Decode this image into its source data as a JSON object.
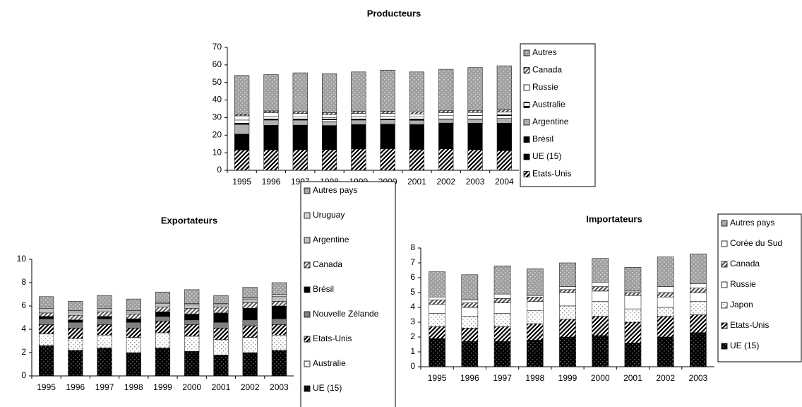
{
  "chart_data": [
    {
      "type": "stacked_bar",
      "title": "Producteurs",
      "categories": [
        "1995",
        "1996",
        "1997",
        "1998",
        "1999",
        "2000",
        "2001",
        "2002",
        "2003",
        "2004"
      ],
      "ylim": [
        0,
        70
      ],
      "yticks": [
        0,
        10,
        20,
        30,
        40,
        50,
        60,
        70
      ],
      "series": [
        {
          "name": "Etats-Unis",
          "color": "#000000",
          "pattern": "diag",
          "values": [
            11.6,
            11.7,
            11.7,
            11.8,
            12.1,
            12.3,
            11.9,
            12.2,
            11.8,
            11.2
          ]
        },
        {
          "name": "UE (15)",
          "color": "#000000",
          "pattern": "solid",
          "values": [
            5,
            7.7,
            7.6,
            7.6,
            7.7,
            7.5,
            7.4,
            7.5,
            7.6,
            7.8
          ]
        },
        {
          "name": "Brésil",
          "color": "#000000",
          "pattern": "solid",
          "values": [
            4,
            6.2,
            6.4,
            6.1,
            6.3,
            6.5,
            6.8,
            7.2,
            7.4,
            7.8
          ]
        },
        {
          "name": "Argentine",
          "color": "#b0b0b0",
          "pattern": "solid",
          "values": [
            5.5,
            3,
            2.6,
            2.3,
            2.5,
            2.4,
            2.3,
            2.2,
            2.3,
            2.7
          ]
        },
        {
          "name": "Australie",
          "color": "#ffffff",
          "pattern": "half",
          "values": [
            2.5,
            2,
            2,
            2.1,
            2,
            2,
            2.1,
            2,
            2.1,
            2.1
          ]
        },
        {
          "name": "Russie",
          "color": "#ffffff",
          "pattern": "solid",
          "values": [
            2.4,
            2.2,
            2,
            1.8,
            1.8,
            1.7,
            1.6,
            1.7,
            1.7,
            1.6
          ]
        },
        {
          "name": "Canada",
          "color": "#555555",
          "pattern": "diag",
          "values": [
            1,
            1,
            1.1,
            1.1,
            1.2,
            1.2,
            1.2,
            1.3,
            1.2,
            1.2
          ]
        },
        {
          "name": "Autres",
          "color": "#a0a0a0",
          "pattern": "dots",
          "values": [
            22,
            20.7,
            22.1,
            22.2,
            22.4,
            23.4,
            22.7,
            23.4,
            24.4,
            25.1
          ]
        }
      ]
    },
    {
      "type": "stacked_bar",
      "title": "Exportateurs",
      "categories": [
        "1995",
        "1996",
        "1997",
        "1998",
        "1999",
        "2000",
        "2001",
        "2002",
        "2003"
      ],
      "ylim": [
        0,
        10
      ],
      "yticks": [
        0,
        2,
        4,
        6,
        8,
        10
      ],
      "series": [
        {
          "name": "UE (15)",
          "color": "#000000",
          "pattern": "dots",
          "values": [
            2.6,
            2.2,
            2.4,
            2.0,
            2.4,
            2.1,
            1.8,
            2.0,
            2.2
          ]
        },
        {
          "name": "Australie",
          "color": "#ffffff",
          "pattern": "dots",
          "values": [
            1.0,
            1.0,
            1.1,
            1.3,
            1.3,
            1.3,
            1.3,
            1.3,
            1.3
          ]
        },
        {
          "name": "Etats-Unis",
          "color": "#000000",
          "pattern": "diag",
          "values": [
            0.8,
            0.9,
            0.9,
            0.8,
            1.0,
            1.0,
            1.0,
            1.0,
            0.9
          ]
        },
        {
          "name": "Nouvelle Zélande",
          "color": "#808080",
          "pattern": "solid",
          "values": [
            0.5,
            0.5,
            0.5,
            0.5,
            0.4,
            0.4,
            0.5,
            0.5,
            0.5
          ]
        },
        {
          "name": "Brésil",
          "color": "#000000",
          "pattern": "solid",
          "values": [
            0.2,
            0.2,
            0.2,
            0.3,
            0.4,
            0.5,
            0.8,
            1.0,
            1.1
          ]
        },
        {
          "name": "Canada",
          "color": "#606060",
          "pattern": "diag",
          "values": [
            0.3,
            0.4,
            0.4,
            0.4,
            0.4,
            0.5,
            0.5,
            0.5,
            0.4
          ]
        },
        {
          "name": "Argentine",
          "color": "#c0c0c0",
          "pattern": "solid",
          "values": [
            0.4,
            0.3,
            0.3,
            0.2,
            0.3,
            0.3,
            0.2,
            0.3,
            0.4
          ]
        },
        {
          "name": "Uruguay",
          "color": "#d0d0d0",
          "pattern": "dots",
          "values": [
            0.1,
            0.1,
            0.1,
            0.1,
            0.1,
            0.1,
            0.1,
            0.1,
            0.2
          ]
        },
        {
          "name": "Autres pays",
          "color": "#a0a0a0",
          "pattern": "dots",
          "values": [
            0.9,
            0.8,
            1.0,
            1.0,
            0.9,
            1.2,
            0.7,
            0.9,
            1.0
          ]
        }
      ]
    },
    {
      "type": "stacked_bar",
      "title": "Importateurs",
      "categories": [
        "1995",
        "1996",
        "1997",
        "1998",
        "1999",
        "2000",
        "2001",
        "2002",
        "2003"
      ],
      "ylim": [
        0,
        8
      ],
      "yticks": [
        0,
        1,
        2,
        3,
        4,
        5,
        6,
        7,
        8
      ],
      "series": [
        {
          "name": "UE (15)",
          "color": "#000000",
          "pattern": "dots",
          "values": [
            1.9,
            1.7,
            1.7,
            1.8,
            2.0,
            2.1,
            1.6,
            2.0,
            2.3
          ]
        },
        {
          "name": "Etats-Unis",
          "color": "#000000",
          "pattern": "diag",
          "values": [
            0.8,
            0.9,
            1.0,
            1.1,
            1.2,
            1.3,
            1.4,
            1.4,
            1.2
          ]
        },
        {
          "name": "Japon",
          "color": "#ffffff",
          "pattern": "dots",
          "values": [
            0.9,
            0.8,
            0.9,
            0.9,
            0.9,
            1.0,
            0.9,
            0.6,
            0.9
          ]
        },
        {
          "name": "Russie",
          "color": "#ffffff",
          "pattern": "solid",
          "values": [
            0.6,
            0.6,
            0.7,
            0.6,
            0.9,
            0.7,
            0.9,
            0.7,
            0.6
          ]
        },
        {
          "name": "Canada",
          "color": "#505050",
          "pattern": "diag",
          "values": [
            0.3,
            0.3,
            0.3,
            0.3,
            0.2,
            0.3,
            0.2,
            0.3,
            0.3
          ]
        },
        {
          "name": "Corée du Sud",
          "color": "#ffffff",
          "pattern": "solid",
          "values": [
            0.2,
            0.2,
            0.3,
            0.1,
            0.2,
            0.3,
            0.1,
            0.4,
            0.3
          ]
        },
        {
          "name": "Autres pays",
          "color": "#a0a0a0",
          "pattern": "dots",
          "values": [
            1.7,
            1.7,
            1.9,
            1.8,
            1.6,
            1.6,
            1.6,
            2.0,
            2.0
          ]
        }
      ]
    }
  ]
}
